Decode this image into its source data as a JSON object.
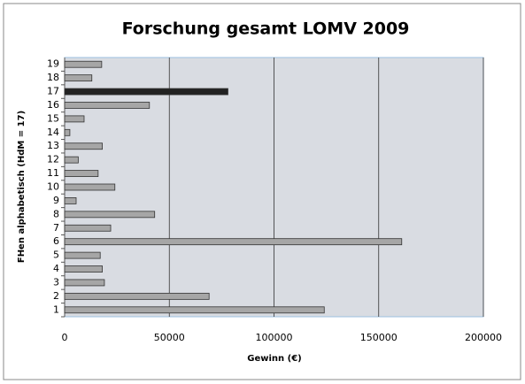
{
  "chart_data": {
    "type": "bar",
    "orientation": "horizontal",
    "title": "Forschung gesamt LOMV 2009",
    "xlabel": "Gewinn (€)",
    "ylabel": "FHen alphabetisch (HdM = 17)",
    "categories": [
      "1",
      "2",
      "3",
      "4",
      "5",
      "6",
      "7",
      "8",
      "9",
      "10",
      "11",
      "12",
      "13",
      "14",
      "15",
      "16",
      "17",
      "18",
      "19"
    ],
    "values": [
      124000,
      69000,
      19000,
      18000,
      17000,
      161000,
      22000,
      43000,
      5500,
      24000,
      16000,
      6500,
      18000,
      2500,
      9300,
      40500,
      78000,
      13000,
      17700
    ],
    "colors": [
      "#a6a6a6",
      "#a6a6a6",
      "#a6a6a6",
      "#a6a6a6",
      "#a6a6a6",
      "#a6a6a6",
      "#a6a6a6",
      "#a6a6a6",
      "#a6a6a6",
      "#a6a6a6",
      "#a6a6a6",
      "#a6a6a6",
      "#a6a6a6",
      "#a6a6a6",
      "#a6a6a6",
      "#a6a6a6",
      "#222222",
      "#a6a6a6",
      "#a6a6a6"
    ],
    "xlim": [
      0,
      200000
    ],
    "xticks": [
      0,
      50000,
      100000,
      150000,
      200000
    ],
    "grid": true
  }
}
